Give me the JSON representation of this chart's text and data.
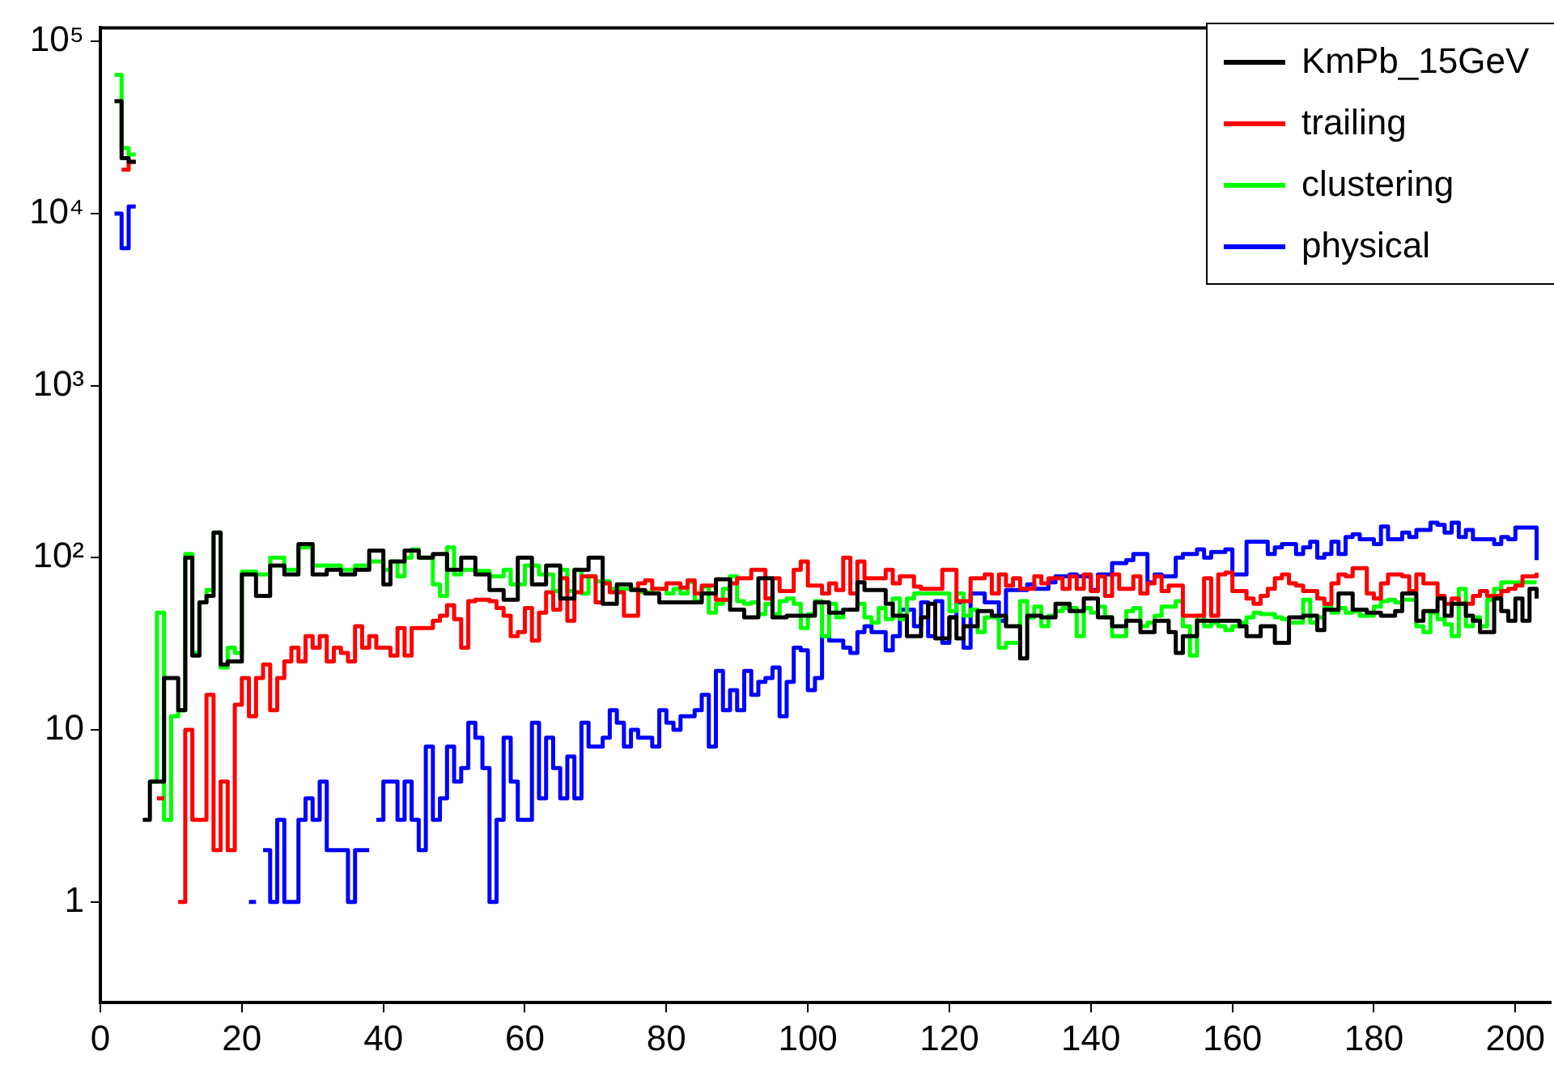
{
  "chart_data": {
    "type": "step",
    "log": "y",
    "grid": false,
    "legend": "top right",
    "marker": "none",
    "line_style": "solid",
    "xlim": [
      0,
      205
    ],
    "xticks": [
      0,
      20,
      40,
      60,
      80,
      100,
      120,
      140,
      160,
      180,
      200
    ],
    "ylim": [
      0.26,
      120000
    ],
    "yticks": [
      1,
      10,
      {
        "value": 100,
        "label": "10²"
      },
      {
        "value": 1000,
        "label": "10³"
      },
      {
        "value": 10000,
        "label": "10⁴"
      },
      {
        "value": 100000,
        "label": "10⁵"
      }
    ],
    "series": [
      {
        "name": "KmPb_15GeV",
        "color": "#000000",
        "x": [
          2,
          3,
          4,
          5,
          6,
          7,
          8,
          9,
          10,
          11,
          12,
          13,
          14,
          15,
          16,
          17,
          18,
          19,
          20,
          22,
          24,
          26,
          28,
          30,
          32,
          34,
          36,
          38,
          40,
          41,
          43,
          45,
          47,
          49,
          51,
          53,
          55,
          57,
          59,
          61,
          63,
          65,
          67,
          69,
          71,
          73,
          75,
          77,
          79,
          81,
          83,
          85,
          87,
          89,
          91,
          93,
          95,
          97,
          99,
          101,
          103,
          105,
          107,
          108,
          110,
          111,
          112,
          114,
          116,
          117,
          118,
          120,
          121,
          122,
          124,
          126,
          128,
          130,
          131,
          133,
          135,
          137,
          139,
          141,
          143,
          145,
          147,
          149,
          151,
          152,
          153,
          155,
          157,
          159,
          161,
          162,
          164,
          166,
          168,
          170,
          172,
          173,
          175,
          177,
          179,
          181,
          183,
          184,
          186,
          187,
          189,
          190,
          191,
          193,
          194,
          195,
          197,
          198,
          199,
          200,
          201,
          202,
          203
        ],
        "values": [
          45000,
          21000,
          20000,
          null,
          3,
          5,
          5,
          20,
          20,
          13,
          100,
          27,
          55,
          60,
          140,
          24,
          25,
          25,
          80,
          60,
          90,
          80,
          120,
          80,
          85,
          80,
          85,
          110,
          70,
          95,
          110,
          100,
          105,
          85,
          100,
          80,
          65,
          57,
          100,
          70,
          90,
          58,
          85,
          100,
          54,
          70,
          65,
          62,
          55,
          55,
          55,
          62,
          75,
          50,
          45,
          76,
          45,
          46,
          46,
          55,
          48,
          50,
          72,
          65,
          65,
          54,
          46,
          35,
          45,
          54,
          34,
          45,
          34,
          40,
          49,
          46,
          40,
          26,
          46,
          45,
          54,
          49,
          58,
          45,
          40,
          43,
          37,
          43,
          37,
          28,
          35,
          43,
          43,
          43,
          40,
          35,
          40,
          32,
          45,
          46,
          38,
          50,
          62,
          50,
          48,
          46,
          49,
          62,
          43,
          49,
          58,
          46,
          54,
          46,
          43,
          37,
          58,
          49,
          43,
          58,
          43,
          66,
          58
        ]
      },
      {
        "name": "trailing",
        "color": "#ff0000",
        "x": [
          3,
          4,
          5,
          8,
          9,
          11,
          12,
          13,
          14,
          15,
          16,
          17,
          18,
          19,
          20,
          21,
          22,
          23,
          24,
          25,
          26,
          27,
          28,
          29,
          30,
          31,
          32,
          33,
          34,
          35,
          36,
          37,
          38,
          39,
          40,
          41,
          42,
          43,
          44,
          46,
          47,
          48,
          49,
          50,
          51,
          52,
          53,
          55,
          56,
          57,
          58,
          59,
          60,
          61,
          62,
          63,
          64,
          65,
          66,
          67,
          68,
          70,
          71,
          72,
          74,
          76,
          77,
          78,
          80,
          82,
          83,
          84,
          85,
          87,
          88,
          89,
          90,
          92,
          94,
          95,
          96,
          98,
          99,
          100,
          102,
          103,
          104,
          105,
          106,
          107,
          108,
          111,
          112,
          113,
          115,
          116,
          119,
          121,
          123,
          125,
          126,
          127,
          128,
          129,
          130,
          132,
          133,
          134,
          136,
          137,
          138,
          139,
          140,
          141,
          142,
          143,
          144,
          146,
          147,
          148,
          149,
          150,
          151,
          153,
          156,
          157,
          158,
          159,
          160,
          162,
          163,
          164,
          165,
          166,
          167,
          168,
          169,
          170,
          172,
          173,
          174,
          175,
          176,
          177,
          179,
          180,
          181,
          182,
          184,
          185,
          186,
          187,
          189,
          190,
          191,
          192,
          194,
          195,
          196,
          198,
          199,
          200,
          201,
          203
        ],
        "values": [
          18000,
          20000,
          null,
          4,
          null,
          1,
          10,
          3,
          3,
          16,
          2,
          5,
          2,
          14,
          20,
          12,
          20,
          24,
          13,
          20,
          25,
          30,
          25,
          35,
          30,
          35,
          25,
          30,
          28,
          25,
          40,
          30,
          35,
          30,
          30,
          27,
          39,
          27,
          39,
          39,
          43,
          46,
          53,
          44,
          30,
          56,
          57,
          56,
          51,
          46,
          35,
          37,
          51,
          33,
          48,
          63,
          50,
          76,
          43,
          63,
          78,
          55,
          71,
          63,
          46,
          71,
          74,
          66,
          71,
          67,
          74,
          62,
          69,
          57,
          57,
          71,
          76,
          85,
          58,
          76,
          64,
          85,
          95,
          69,
          62,
          71,
          65,
          100,
          62,
          95,
          76,
          85,
          71,
          78,
          68,
          66,
          85,
          56,
          76,
          80,
          62,
          80,
          69,
          76,
          66,
          78,
          71,
          76,
          66,
          78,
          66,
          80,
          64,
          78,
          60,
          80,
          66,
          78,
          62,
          71,
          78,
          64,
          69,
          46,
          76,
          46,
          80,
          82,
          64,
          58,
          54,
          60,
          66,
          76,
          80,
          71,
          69,
          64,
          58,
          54,
          71,
          80,
          78,
          87,
          62,
          58,
          71,
          80,
          78,
          64,
          80,
          71,
          60,
          54,
          58,
          54,
          60,
          64,
          60,
          64,
          66,
          69,
          78,
          82
        ]
      },
      {
        "name": "clustering",
        "color": "#00ff00",
        "x": [
          2,
          3,
          4,
          5,
          7,
          8,
          9,
          10,
          11,
          12,
          13,
          14,
          15,
          16,
          17,
          18,
          19,
          20,
          22,
          24,
          26,
          28,
          30,
          32,
          34,
          36,
          38,
          40,
          41,
          42,
          43,
          44,
          45,
          47,
          48,
          49,
          50,
          51,
          53,
          55,
          57,
          58,
          60,
          62,
          64,
          65,
          66,
          67,
          68,
          69,
          70,
          72,
          74,
          76,
          78,
          80,
          81,
          82,
          83,
          84,
          85,
          86,
          87,
          88,
          89,
          90,
          91,
          92,
          93,
          94,
          95,
          96,
          97,
          98,
          99,
          100,
          101,
          102,
          103,
          104,
          105,
          107,
          108,
          109,
          110,
          111,
          112,
          113,
          114,
          115,
          120,
          121,
          122,
          123,
          124,
          125,
          127,
          128,
          130,
          131,
          132,
          133,
          134,
          135,
          136,
          138,
          139,
          140,
          141,
          142,
          143,
          145,
          146,
          147,
          148,
          149,
          150,
          152,
          153,
          154,
          155,
          156,
          157,
          158,
          159,
          160,
          161,
          162,
          163,
          164,
          166,
          167,
          168,
          170,
          171,
          172,
          173,
          174,
          175,
          176,
          177,
          178,
          180,
          181,
          182,
          183,
          184,
          185,
          186,
          187,
          188,
          189,
          190,
          191,
          192,
          193,
          194,
          195,
          196,
          197,
          198,
          203
        ],
        "values": [
          64000,
          24000,
          22000,
          null,
          5,
          48,
          3,
          12,
          13,
          105,
          28,
          55,
          65,
          140,
          23,
          30,
          28,
          83,
          80,
          100,
          85,
          115,
          90,
          90,
          85,
          90,
          95,
          85,
          95,
          78,
          100,
          112,
          100,
          70,
          60,
          115,
          80,
          85,
          84,
          78,
          85,
          70,
          90,
          80,
          64,
          85,
          64,
          85,
          62,
          78,
          73,
          66,
          66,
          63,
          66,
          62,
          66,
          62,
          72,
          56,
          68,
          48,
          54,
          66,
          78,
          56,
          54,
          55,
          47,
          54,
          47,
          56,
          58,
          54,
          39,
          47,
          56,
          35,
          54,
          45,
          50,
          54,
          45,
          42,
          51,
          44,
          58,
          44,
          58,
          62,
          49,
          62,
          46,
          50,
          37,
          45,
          30,
          32,
          56,
          45,
          52,
          40,
          46,
          49,
          51,
          35,
          51,
          48,
          52,
          45,
          35,
          49,
          51,
          40,
          42,
          46,
          52,
          56,
          40,
          27,
          46,
          40,
          42,
          40,
          38,
          40,
          42,
          45,
          48,
          47,
          45,
          44,
          42,
          57,
          42,
          45,
          52,
          48,
          51,
          48,
          49,
          46,
          52,
          56,
          57,
          55,
          57,
          57,
          40,
          37,
          48,
          44,
          41,
          35,
          66,
          40,
          45,
          40,
          57,
          66,
          72,
          72
        ]
      },
      {
        "name": "physical",
        "color": "#0000ff",
        "x": [
          2,
          3,
          4,
          5,
          21,
          22,
          23,
          24,
          25,
          26,
          27,
          28,
          29,
          30,
          31,
          32,
          33,
          34,
          35,
          36,
          37,
          38,
          39,
          40,
          41,
          42,
          43,
          44,
          45,
          46,
          47,
          48,
          49,
          50,
          51,
          52,
          53,
          54,
          55,
          56,
          57,
          58,
          59,
          60,
          61,
          62,
          63,
          64,
          65,
          66,
          67,
          68,
          69,
          70,
          71,
          72,
          73,
          74,
          75,
          76,
          77,
          78,
          79,
          80,
          81,
          82,
          83,
          84,
          85,
          86,
          87,
          88,
          89,
          90,
          91,
          92,
          93,
          94,
          95,
          96,
          97,
          98,
          99,
          100,
          101,
          102,
          103,
          104,
          105,
          106,
          107,
          108,
          109,
          110,
          111,
          112,
          113,
          114,
          115,
          116,
          117,
          118,
          119,
          120,
          121,
          122,
          123,
          125,
          127,
          128,
          131,
          132,
          134,
          135,
          137,
          138,
          140,
          141,
          143,
          145,
          146,
          148,
          149,
          150,
          152,
          153,
          155,
          156,
          157,
          159,
          160,
          162,
          165,
          166,
          167,
          169,
          170,
          171,
          172,
          173,
          174,
          175,
          176,
          177,
          178,
          180,
          181,
          182,
          184,
          185,
          186,
          188,
          189,
          190,
          191,
          192,
          193,
          194,
          196,
          197,
          198,
          199,
          200,
          202,
          203
        ],
        "values": [
          10000,
          6300,
          11000,
          null,
          1,
          null,
          2,
          1,
          3,
          1,
          1,
          3,
          4,
          3,
          5,
          2,
          2,
          2,
          1,
          2,
          2,
          null,
          3,
          5,
          5,
          3,
          5,
          3,
          2,
          8,
          3,
          4,
          8,
          5,
          6,
          11,
          9,
          6,
          1,
          3,
          9,
          5,
          3,
          3,
          11,
          4,
          9,
          6,
          4,
          7,
          4,
          11,
          8,
          8,
          9,
          13,
          11,
          8,
          10,
          9,
          9,
          8,
          13,
          11,
          10,
          12,
          12,
          13,
          16,
          8,
          22,
          13,
          17,
          13,
          22,
          16,
          19,
          20,
          23,
          12,
          19,
          30,
          29,
          17,
          20,
          35,
          33,
          33,
          30,
          28,
          37,
          40,
          37,
          37,
          29,
          35,
          50,
          50,
          40,
          55,
          35,
          56,
          32,
          45,
          55,
          30,
          62,
          55,
          43,
          65,
          70,
          66,
          72,
          78,
          80,
          78,
          65,
          80,
          93,
          97,
          105,
          72,
          80,
          78,
          100,
          105,
          112,
          100,
          108,
          112,
          80,
          124,
          105,
          115,
          120,
          105,
          115,
          124,
          100,
          105,
          124,
          105,
          132,
          137,
          128,
          120,
          152,
          128,
          140,
          132,
          145,
          160,
          155,
          140,
          160,
          132,
          145,
          128,
          128,
          120,
          132,
          128,
          150,
          150,
          97
        ]
      }
    ]
  }
}
